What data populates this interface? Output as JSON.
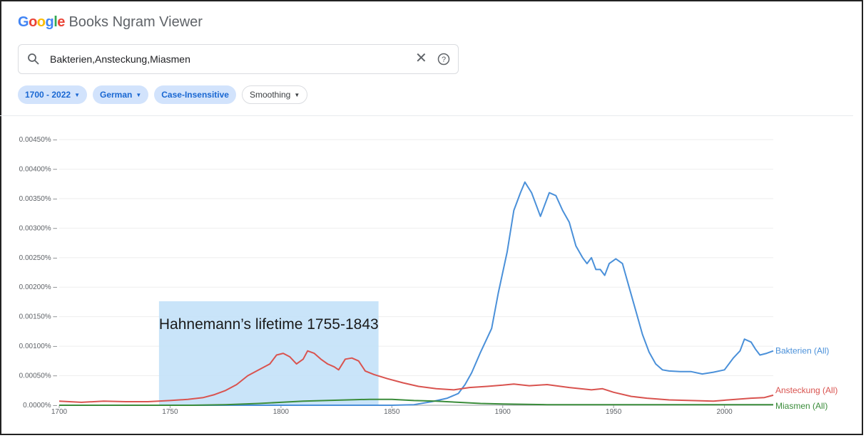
{
  "app": {
    "logo_google": "Google",
    "logo_rest": " Books Ngram Viewer",
    "logo_colors": [
      "#4285F4",
      "#EA4335",
      "#FBBC05",
      "#4285F4",
      "#34A853",
      "#EA4335"
    ]
  },
  "search": {
    "query": "Bakterien,Ansteckung,Miasmen",
    "icon": "search-icon",
    "clear_icon": "✕",
    "help_icon": "help-icon"
  },
  "filters": {
    "range": "1700 - 2022",
    "corpus": "German",
    "case": "Case-Insensitive",
    "smoothing": "Smoothing"
  },
  "annotation": {
    "text": "Hahnemann’s lifetime 1755-1843",
    "from": 1745,
    "to": 1844,
    "color": "#c3e1f8"
  },
  "chart_data": {
    "type": "line",
    "xlim": [
      1700,
      2022
    ],
    "ylim": [
      0,
      0.0045
    ],
    "xticks": [
      1700,
      1750,
      1800,
      1850,
      1900,
      1950,
      2000
    ],
    "yticks": [
      {
        "v": 0,
        "label": "0.0000%"
      },
      {
        "v": 0.0005,
        "label": "0.00050%"
      },
      {
        "v": 0.001,
        "label": "0.00100%"
      },
      {
        "v": 0.0015,
        "label": "0.00150%"
      },
      {
        "v": 0.002,
        "label": "0.00200%"
      },
      {
        "v": 0.0025,
        "label": "0.00250%"
      },
      {
        "v": 0.003,
        "label": "0.00300%"
      },
      {
        "v": 0.0035,
        "label": "0.00350%"
      },
      {
        "v": 0.004,
        "label": "0.00400%"
      },
      {
        "v": 0.0045,
        "label": "0.00450%"
      }
    ],
    "series": [
      {
        "name": "Bakterien (All)",
        "color": "#4a90d9",
        "points": [
          [
            1700,
            0
          ],
          [
            1850,
            0
          ],
          [
            1860,
            1e-05
          ],
          [
            1868,
            6e-05
          ],
          [
            1875,
            0.00012
          ],
          [
            1880,
            0.0002
          ],
          [
            1883,
            0.00035
          ],
          [
            1886,
            0.00055
          ],
          [
            1890,
            0.0009
          ],
          [
            1895,
            0.0013
          ],
          [
            1898,
            0.0019
          ],
          [
            1902,
            0.0026
          ],
          [
            1905,
            0.0033
          ],
          [
            1908,
            0.0036
          ],
          [
            1910,
            0.00378
          ],
          [
            1913,
            0.0036
          ],
          [
            1915,
            0.0034
          ],
          [
            1917,
            0.0032
          ],
          [
            1919,
            0.0034
          ],
          [
            1921,
            0.0036
          ],
          [
            1924,
            0.00355
          ],
          [
            1927,
            0.0033
          ],
          [
            1930,
            0.0031
          ],
          [
            1933,
            0.0027
          ],
          [
            1936,
            0.0025
          ],
          [
            1938,
            0.0024
          ],
          [
            1940,
            0.0025
          ],
          [
            1942,
            0.0023
          ],
          [
            1944,
            0.0023
          ],
          [
            1946,
            0.0022
          ],
          [
            1948,
            0.0024
          ],
          [
            1951,
            0.00248
          ],
          [
            1954,
            0.0024
          ],
          [
            1957,
            0.002
          ],
          [
            1960,
            0.0016
          ],
          [
            1963,
            0.0012
          ],
          [
            1966,
            0.0009
          ],
          [
            1969,
            0.0007
          ],
          [
            1972,
            0.0006
          ],
          [
            1975,
            0.00058
          ],
          [
            1980,
            0.00057
          ],
          [
            1985,
            0.00057
          ],
          [
            1990,
            0.00053
          ],
          [
            1995,
            0.00056
          ],
          [
            2000,
            0.0006
          ],
          [
            2004,
            0.0008
          ],
          [
            2007,
            0.00092
          ],
          [
            2009,
            0.00112
          ],
          [
            2012,
            0.00107
          ],
          [
            2014,
            0.00095
          ],
          [
            2016,
            0.00085
          ],
          [
            2019,
            0.00088
          ],
          [
            2022,
            0.00092
          ]
        ]
      },
      {
        "name": "Ansteckung (All)",
        "color": "#d9534f",
        "points": [
          [
            1700,
            7e-05
          ],
          [
            1710,
            5e-05
          ],
          [
            1720,
            7e-05
          ],
          [
            1730,
            6e-05
          ],
          [
            1740,
            6e-05
          ],
          [
            1750,
            8e-05
          ],
          [
            1758,
            0.0001
          ],
          [
            1765,
            0.00013
          ],
          [
            1770,
            0.00018
          ],
          [
            1775,
            0.00025
          ],
          [
            1780,
            0.00035
          ],
          [
            1785,
            0.0005
          ],
          [
            1790,
            0.0006
          ],
          [
            1795,
            0.0007
          ],
          [
            1798,
            0.00085
          ],
          [
            1801,
            0.00088
          ],
          [
            1804,
            0.00082
          ],
          [
            1807,
            0.0007
          ],
          [
            1810,
            0.00078
          ],
          [
            1812,
            0.00092
          ],
          [
            1815,
            0.00088
          ],
          [
            1818,
            0.00078
          ],
          [
            1821,
            0.0007
          ],
          [
            1824,
            0.00065
          ],
          [
            1826,
            0.0006
          ],
          [
            1829,
            0.00078
          ],
          [
            1832,
            0.0008
          ],
          [
            1835,
            0.00075
          ],
          [
            1838,
            0.00058
          ],
          [
            1842,
            0.00052
          ],
          [
            1848,
            0.00045
          ],
          [
            1855,
            0.00038
          ],
          [
            1862,
            0.00032
          ],
          [
            1870,
            0.00028
          ],
          [
            1878,
            0.00026
          ],
          [
            1885,
            0.0003
          ],
          [
            1893,
            0.00032
          ],
          [
            1900,
            0.00034
          ],
          [
            1905,
            0.00036
          ],
          [
            1912,
            0.00033
          ],
          [
            1920,
            0.00035
          ],
          [
            1930,
            0.0003
          ],
          [
            1940,
            0.00026
          ],
          [
            1945,
            0.00028
          ],
          [
            1950,
            0.00022
          ],
          [
            1958,
            0.00015
          ],
          [
            1965,
            0.00012
          ],
          [
            1975,
            9e-05
          ],
          [
            1985,
            8e-05
          ],
          [
            1995,
            7e-05
          ],
          [
            2005,
            0.0001
          ],
          [
            2012,
            0.00012
          ],
          [
            2018,
            0.00013
          ],
          [
            2022,
            0.00017
          ]
        ]
      },
      {
        "name": "Miasmen (All)",
        "color": "#3a8c3a",
        "points": [
          [
            1700,
            0
          ],
          [
            1760,
            0
          ],
          [
            1775,
            1e-05
          ],
          [
            1790,
            3e-05
          ],
          [
            1800,
            5e-05
          ],
          [
            1810,
            7e-05
          ],
          [
            1820,
            8e-05
          ],
          [
            1830,
            9e-05
          ],
          [
            1840,
            0.0001
          ],
          [
            1850,
            0.0001
          ],
          [
            1860,
            8e-05
          ],
          [
            1870,
            7e-05
          ],
          [
            1880,
            5e-05
          ],
          [
            1890,
            3e-05
          ],
          [
            1900,
            2e-05
          ],
          [
            1920,
            1e-05
          ],
          [
            2022,
            1e-05
          ]
        ]
      }
    ]
  }
}
